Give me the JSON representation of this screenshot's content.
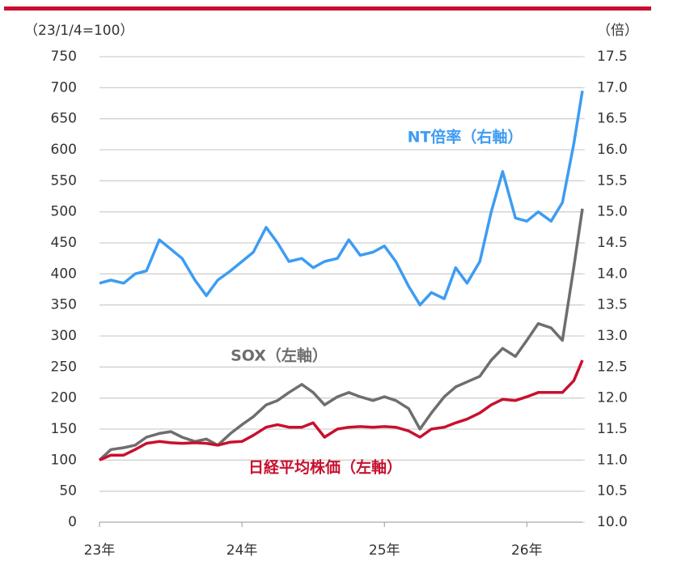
{
  "chart_data": {
    "type": "line",
    "left_axis_title": "（23/1/4=100）",
    "right_axis_title": "（倍）",
    "x": [
      23.0,
      23.08,
      23.17,
      23.25,
      23.33,
      23.42,
      23.5,
      23.58,
      23.67,
      23.75,
      23.83,
      23.92,
      24.0,
      24.08,
      24.17,
      24.25,
      24.33,
      24.42,
      24.5,
      24.58,
      24.67,
      24.75,
      24.83,
      24.92,
      25.0,
      25.08,
      25.17,
      25.25,
      25.33,
      25.42,
      25.5,
      25.58,
      25.67,
      25.75,
      25.83,
      25.92,
      26.0,
      26.08,
      26.17,
      26.25,
      26.33,
      26.39
    ],
    "xlim": [
      23,
      26.39
    ],
    "xticks": [
      {
        "value": 23,
        "label": "23年"
      },
      {
        "value": 24,
        "label": "24年"
      },
      {
        "value": 25,
        "label": "25年"
      },
      {
        "value": 26,
        "label": "26年"
      }
    ],
    "ylim": [
      0,
      750
    ],
    "yticks": [
      0,
      50,
      100,
      150,
      200,
      250,
      300,
      350,
      400,
      450,
      500,
      550,
      600,
      650,
      700,
      750
    ],
    "y2lim": [
      10,
      17.5
    ],
    "y2ticks": [
      {
        "value": 10,
        "label": "10.0"
      },
      {
        "value": 10.5,
        "label": "10.5"
      },
      {
        "value": 11,
        "label": "11.0"
      },
      {
        "value": 11.5,
        "label": "11.5"
      },
      {
        "value": 12,
        "label": "12.0"
      },
      {
        "value": 12.5,
        "label": "12.5"
      },
      {
        "value": 13,
        "label": "13.0"
      },
      {
        "value": 13.5,
        "label": "13.5"
      },
      {
        "value": 14,
        "label": "14.0"
      },
      {
        "value": 14.5,
        "label": "14.5"
      },
      {
        "value": 15,
        "label": "15.0"
      },
      {
        "value": 15.5,
        "label": "15.5"
      },
      {
        "value": 16,
        "label": "16.0"
      },
      {
        "value": 16.5,
        "label": "16.5"
      },
      {
        "value": 17,
        "label": "17.0"
      },
      {
        "value": 17.5,
        "label": "17.5"
      }
    ],
    "grid": true,
    "series": [
      {
        "name": "NT倍率（右軸）",
        "color": "#3d9cf2",
        "axis": "y2",
        "values": [
          13.85,
          13.9,
          13.85,
          14.0,
          14.05,
          14.55,
          14.4,
          14.25,
          13.9,
          13.65,
          13.9,
          14.05,
          14.2,
          14.35,
          14.75,
          14.5,
          14.2,
          14.25,
          14.1,
          14.2,
          14.25,
          14.55,
          14.3,
          14.35,
          14.45,
          14.2,
          13.8,
          13.5,
          13.7,
          13.6,
          14.1,
          13.85,
          14.2,
          15.0,
          15.65,
          14.9,
          14.85,
          15.0,
          14.85,
          15.15,
          16.1,
          16.95
        ]
      },
      {
        "name": "SOX（左軸）",
        "color": "#6e6e6e",
        "values": [
          100,
          117,
          120,
          124,
          137,
          143,
          146,
          137,
          130,
          134,
          124,
          143,
          157,
          170,
          189,
          196,
          209,
          222,
          209,
          189,
          202,
          209,
          202,
          196,
          202,
          196,
          183,
          150,
          176,
          202,
          218,
          226,
          235,
          261,
          280,
          267,
          293,
          320,
          313,
          293,
          411,
          505
        ]
      },
      {
        "name": "日経平均株価（左軸）",
        "color": "#c8102e",
        "values": [
          100,
          108,
          108,
          117,
          127,
          130,
          128,
          127,
          128,
          127,
          124,
          129,
          130,
          140,
          153,
          157,
          153,
          153,
          160,
          137,
          150,
          153,
          154,
          153,
          154,
          153,
          147,
          137,
          150,
          153,
          160,
          166,
          176,
          189,
          198,
          196,
          202,
          209,
          209,
          209,
          228,
          261
        ]
      }
    ]
  }
}
